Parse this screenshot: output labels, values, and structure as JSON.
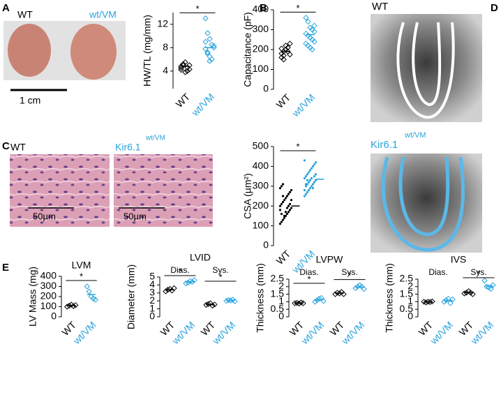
{
  "figure": {
    "panel_labels": [
      "A",
      "B",
      "C",
      "D",
      "E"
    ],
    "heart_labels": [
      "WT",
      "wt/VM"
    ],
    "scale_bar": "1 cm",
    "histology_labels": [
      "WT",
      "Kir6.1"
    ],
    "superscript": "wt/VM",
    "micro_scale": "50µm",
    "echo_labels": [
      "WT",
      "Kir6.1"
    ]
  },
  "chart_data": [
    {
      "type": "strip",
      "ylabel": "HW/TL (mg/mm)",
      "categories": [
        "WT",
        "wt/VM"
      ],
      "colors": [
        "#000000",
        "#29a3dc"
      ],
      "groups": [
        [
          4.5,
          5.0,
          5.5,
          4.0,
          4.3,
          4.8,
          5.2,
          3.8,
          4.6,
          5.0,
          4.2
        ],
        [
          13.0,
          10.5,
          9.5,
          8.5,
          8.0,
          7.8,
          7.0,
          6.5,
          6.0,
          8.3,
          9.0,
          7.2,
          5.7
        ]
      ],
      "means": [
        4.8,
        8.0
      ],
      "significance": [
        "*"
      ],
      "ylim": [
        1,
        14
      ],
      "yticks": [
        4,
        8,
        12
      ]
    },
    {
      "type": "strip",
      "ylabel": "Capacitance (pF)",
      "categories": [
        "WT",
        "wt/VM"
      ],
      "colors": [
        "#000000",
        "#29a3dc"
      ],
      "groups": [
        [
          180,
          190,
          200,
          210,
          230,
          160,
          150,
          220,
          190,
          175,
          205,
          170
        ],
        [
          360,
          340,
          310,
          300,
          290,
          280,
          270,
          260,
          250,
          240,
          230,
          220,
          210,
          200,
          320
        ]
      ],
      "means": [
        190,
        275
      ],
      "significance": [
        "*"
      ],
      "ylim": [
        0,
        400
      ],
      "yticks": [
        0,
        100,
        200,
        300,
        400
      ]
    },
    {
      "type": "strip",
      "ylabel": "CSA (µm²)",
      "categories": [
        "WT",
        "wt/VM"
      ],
      "colors": [
        "#000000",
        "#29a3dc"
      ],
      "groups": [
        [
          110,
          120,
          130,
          140,
          150,
          160,
          170,
          180,
          190,
          200,
          210,
          220,
          230,
          240,
          250,
          260,
          270,
          280,
          290,
          300,
          310,
          150,
          170,
          190,
          200,
          210,
          230,
          180,
          160,
          250
        ],
        [
          250,
          260,
          270,
          280,
          290,
          300,
          310,
          320,
          330,
          340,
          350,
          360,
          370,
          380,
          390,
          400,
          410,
          420,
          430,
          300,
          310,
          320,
          330,
          340,
          290,
          350,
          360,
          280,
          310,
          330
        ]
      ],
      "means": [
        200,
        335
      ],
      "significance": [
        "*"
      ],
      "ylim": [
        0,
        500
      ],
      "yticks": [
        0,
        100,
        200,
        300,
        400,
        500
      ]
    },
    {
      "type": "strip",
      "title": "LVM",
      "ylabel": "LV Mass (mg)",
      "categories": [
        "WT",
        "wt/VM"
      ],
      "colors": [
        "#000000",
        "#29a3dc"
      ],
      "groups": [
        [
          100,
          110,
          120,
          105,
          115
        ],
        [
          300,
          250,
          200,
          180,
          170
        ]
      ],
      "means": [
        112,
        220
      ],
      "significance": [
        "*"
      ],
      "ylim": [
        0,
        400
      ],
      "yticks": [
        0,
        100,
        200,
        300,
        400
      ]
    },
    {
      "type": "strip",
      "title": "LVID",
      "ylabel": "Diameter (mm)",
      "categories": [
        "WT",
        "wt/VM",
        "WT",
        "wt/VM"
      ],
      "pair_labels": [
        "Dias.",
        "Sys."
      ],
      "colors": [
        "#000000",
        "#29a3dc",
        "#000000",
        "#29a3dc"
      ],
      "groups": [
        [
          3.2,
          3.4,
          3.5,
          3.3,
          3.6
        ],
        [
          4.2,
          4.3,
          4.5,
          4.4,
          4.6
        ],
        [
          1.5,
          1.6,
          1.7,
          1.4,
          1.55
        ],
        [
          2.0,
          2.1,
          2.05,
          2.15,
          1.95
        ]
      ],
      "means": [
        3.4,
        4.4,
        1.55,
        2.05
      ],
      "significance": [
        "*",
        "*"
      ],
      "ylim": [
        0,
        5
      ],
      "yticks": [
        0,
        1,
        2,
        3,
        4,
        5
      ]
    },
    {
      "type": "strip",
      "title": "LVPW",
      "ylabel": "Thickness (mm)",
      "categories": [
        "WT",
        "wt/VM",
        "WT",
        "wt/VM"
      ],
      "pair_labels": [
        "Dias.",
        "Sys."
      ],
      "colors": [
        "#000000",
        "#29a3dc",
        "#000000",
        "#29a3dc"
      ],
      "groups": [
        [
          0.9,
          0.92,
          0.88,
          0.95,
          0.9
        ],
        [
          1.0,
          1.1,
          1.2,
          1.25,
          1.05
        ],
        [
          1.5,
          1.6,
          1.55,
          1.65,
          1.5
        ],
        [
          1.9,
          2.0,
          2.1,
          2.0,
          1.85
        ]
      ],
      "means": [
        0.91,
        1.12,
        1.56,
        1.97
      ],
      "significance": [
        "*",
        "*"
      ],
      "ylim": [
        0,
        2.5
      ],
      "yticks": [
        0,
        0.5,
        1,
        1.5,
        2,
        2.5
      ]
    },
    {
      "type": "strip",
      "title": "IVS",
      "ylabel": "Thickness (mm)",
      "categories": [
        "WT",
        "wt/VM",
        "WT",
        "wt/VM"
      ],
      "pair_labels": [
        "Dias.",
        "Sys."
      ],
      "colors": [
        "#000000",
        "#29a3dc",
        "#000000",
        "#29a3dc"
      ],
      "groups": [
        [
          1.0,
          0.95,
          1.0,
          0.98,
          1.02
        ],
        [
          1.0,
          1.1,
          1.2,
          0.9,
          1.15
        ],
        [
          1.55,
          1.6,
          1.7,
          1.6,
          1.5
        ],
        [
          2.4,
          2.0,
          1.95,
          1.85,
          2.1
        ]
      ],
      "means": [
        0.99,
        1.07,
        1.6,
        2.05
      ],
      "significance": [
        null,
        "*"
      ],
      "ylim": [
        0,
        2.5
      ],
      "yticks": [
        0,
        0.5,
        1,
        1.5,
        2,
        2.5
      ]
    }
  ]
}
